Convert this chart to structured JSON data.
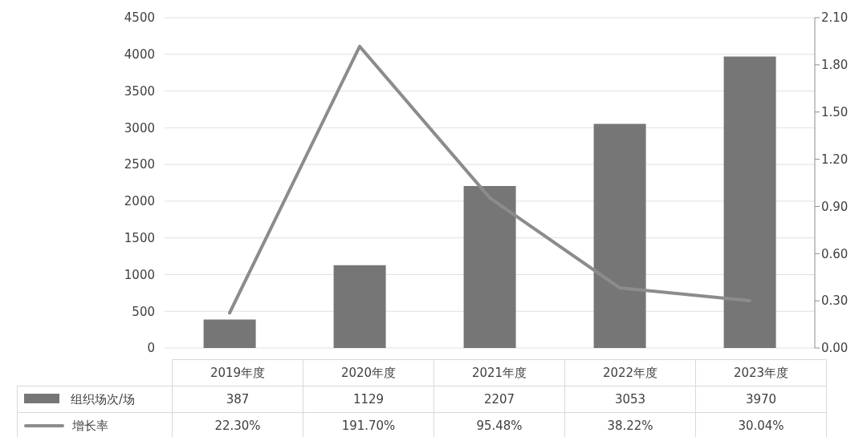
{
  "chart_data": {
    "type": "bar",
    "categories": [
      "2019年度",
      "2020年度",
      "2021年度",
      "2022年度",
      "2023年度"
    ],
    "series": [
      {
        "name": "组织场次/场",
        "color": "#767676",
        "values": [
          387,
          1129,
          2207,
          3053,
          3970
        ],
        "value_labels": [
          "387",
          "1129",
          "2207",
          "3053",
          "3970"
        ]
      },
      {
        "name": "增长率",
        "type": "line",
        "axis": "y2",
        "color": "#8c8c8c",
        "values": [
          0.223,
          1.917,
          0.9548,
          0.3822,
          0.3004
        ],
        "value_labels": [
          "22.30%",
          "191.70%",
          "95.48%",
          "38.22%",
          "30.04%"
        ]
      }
    ],
    "ylim": [
      0,
      4500
    ],
    "yticks": [
      0,
      500,
      1000,
      1500,
      2000,
      2500,
      3000,
      3500,
      4000,
      4500
    ],
    "y2lim": [
      0,
      2.1
    ],
    "y2ticks": [
      {
        "value": 0,
        "label": "0.00"
      },
      {
        "value": 0.3,
        "label": "0.30"
      },
      {
        "value": 0.6,
        "label": "0.60"
      },
      {
        "value": 0.9,
        "label": "0.90"
      },
      {
        "value": 1.2,
        "label": "1.20"
      },
      {
        "value": 1.5,
        "label": "1.50"
      },
      {
        "value": 1.8,
        "label": "1.80"
      },
      {
        "value": 2.1,
        "label": "2.10"
      }
    ],
    "grid": "y",
    "legend": "bottom"
  }
}
